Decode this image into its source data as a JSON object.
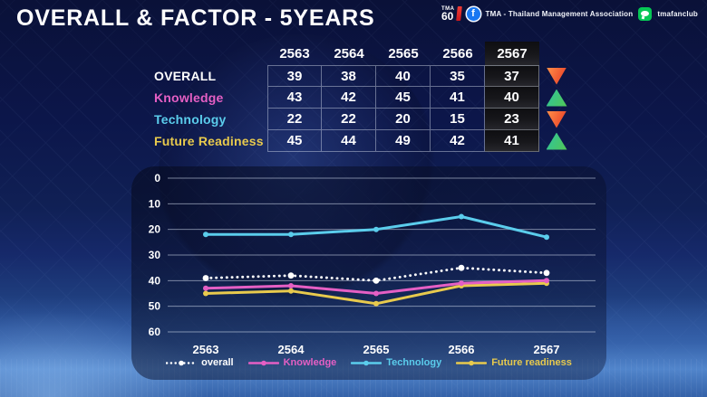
{
  "slide": {
    "title": "OVERALL & FACTOR - 5YEARS"
  },
  "brand": {
    "tma60": {
      "top": "TMA",
      "big": "60"
    },
    "facebook": {
      "icon_letter": "f",
      "label": "TMA - Thailand Management Association"
    },
    "line": {
      "label": "tmafanclub"
    }
  },
  "table": {
    "years": [
      "2563",
      "2564",
      "2565",
      "2566",
      "2567"
    ],
    "highlight_year": "2567",
    "rows": [
      {
        "label": "OVERALL",
        "color": "#ffffff",
        "values": [
          "39",
          "38",
          "40",
          "35",
          "37"
        ],
        "trend": "down"
      },
      {
        "label": "Knowledge",
        "color": "#e55fc4",
        "values": [
          "43",
          "42",
          "45",
          "41",
          "40"
        ],
        "trend": "up"
      },
      {
        "label": "Technology",
        "color": "#5bcdec",
        "values": [
          "22",
          "22",
          "20",
          "15",
          "23"
        ],
        "trend": "down"
      },
      {
        "label": "Future Readiness",
        "color": "#e8ca4d",
        "values": [
          "45",
          "44",
          "49",
          "42",
          "41"
        ],
        "trend": "up"
      }
    ],
    "trend_colors": {
      "up": [
        "#2fc49e",
        "#52c854"
      ],
      "down": [
        "#ff9149",
        "#e53322"
      ]
    }
  },
  "chart_data": {
    "type": "line",
    "title": "",
    "xlabel": "",
    "ylabel": "",
    "x": [
      "2563",
      "2564",
      "2565",
      "2566",
      "2567"
    ],
    "series": [
      {
        "name": "overall",
        "values": [
          39,
          38,
          40,
          35,
          37
        ],
        "color": "#ffffff",
        "style": "dotted"
      },
      {
        "name": "Knowledge",
        "values": [
          43,
          42,
          45,
          41,
          40
        ],
        "color": "#e55fc4",
        "style": "solid"
      },
      {
        "name": "Technology",
        "values": [
          22,
          22,
          20,
          15,
          23
        ],
        "color": "#5bcdec",
        "style": "solid"
      },
      {
        "name": "Future readiness",
        "values": [
          45,
          44,
          49,
          42,
          41
        ],
        "color": "#e8ca4d",
        "style": "solid"
      }
    ],
    "y_ticks": [
      0,
      10,
      20,
      30,
      40,
      50,
      60
    ],
    "ylim": [
      0,
      60
    ],
    "y_inverted": true,
    "grid": true,
    "legend_position": "bottom"
  }
}
